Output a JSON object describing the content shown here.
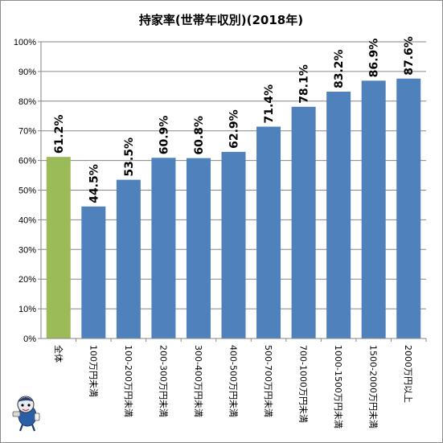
{
  "chart_data": {
    "type": "bar",
    "title": "持家率(世帯年収別)(2018年)",
    "xlabel": "",
    "ylabel": "",
    "categories": [
      "全体",
      "100万円未満",
      "100-200万円未満",
      "200-300万円未満",
      "300-400万円未満",
      "400-500万円未満",
      "500-700万円未満",
      "700-1000万円未満",
      "1000-1500万円未満",
      "1500-2000万円未満",
      "2000万円以上"
    ],
    "values": [
      61.2,
      44.5,
      53.5,
      60.9,
      60.8,
      62.9,
      71.4,
      78.1,
      83.2,
      86.9,
      87.6
    ],
    "value_labels": [
      "61.2%",
      "44.5%",
      "53.5%",
      "60.9%",
      "60.8%",
      "62.9%",
      "71.4%",
      "78.1%",
      "83.2%",
      "86.9%",
      "87.6%"
    ],
    "ylim": [
      0,
      100
    ],
    "yticks": [
      "0%",
      "10%",
      "20%",
      "30%",
      "40%",
      "50%",
      "60%",
      "70%",
      "80%",
      "90%",
      "100%"
    ],
    "grid": true,
    "colors": {
      "highlight": "#9bbb59",
      "bar": "#4f81bd",
      "grid": "#868686"
    },
    "highlight_index": 0
  },
  "mascot_icon": "mascot-character-icon"
}
